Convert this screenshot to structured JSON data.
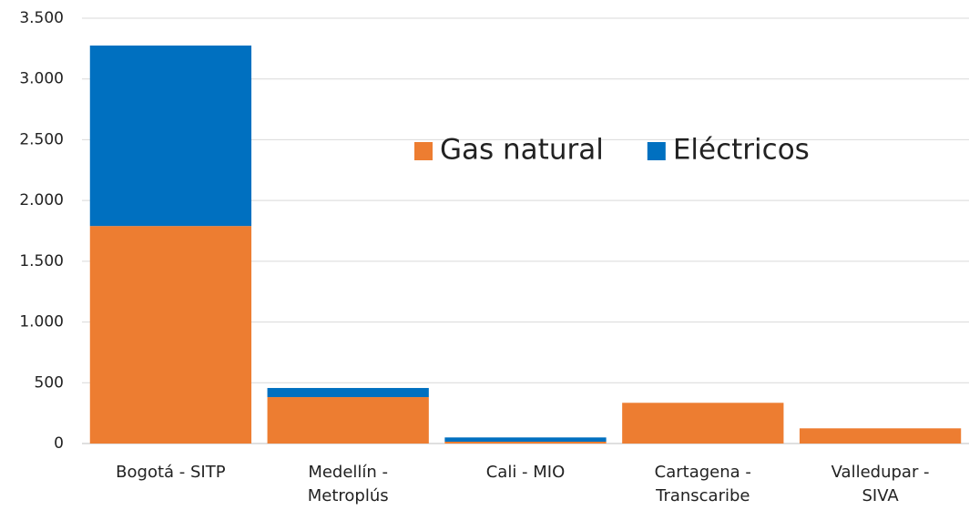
{
  "chart_data": {
    "type": "bar",
    "stacked": true,
    "categories": [
      "Bogotá - SITP",
      "Medellín - Metroplús",
      "Cali - MIO",
      "Cartagena - Transcaribe",
      "Valledupar - SIVA"
    ],
    "series": [
      {
        "name": "Gas natural",
        "color": "#ed7d31",
        "values": [
          1790,
          382,
          15,
          335,
          125
        ]
      },
      {
        "name": "Eléctricos",
        "color": "#0070c0",
        "values": [
          1485,
          75,
          35,
          0,
          0
        ]
      }
    ],
    "ylim": [
      0,
      3500
    ],
    "yticks": [
      0,
      500,
      {
        "value": 1000,
        "label": "1.000"
      },
      {
        "value": 1500,
        "label": "1.500"
      },
      {
        "value": 2000,
        "label": "2.000"
      },
      {
        "value": 2500,
        "label": "2.500"
      },
      {
        "value": 3000,
        "label": "3.000"
      },
      {
        "value": 3500,
        "label": "3.500"
      }
    ],
    "grid": true
  }
}
